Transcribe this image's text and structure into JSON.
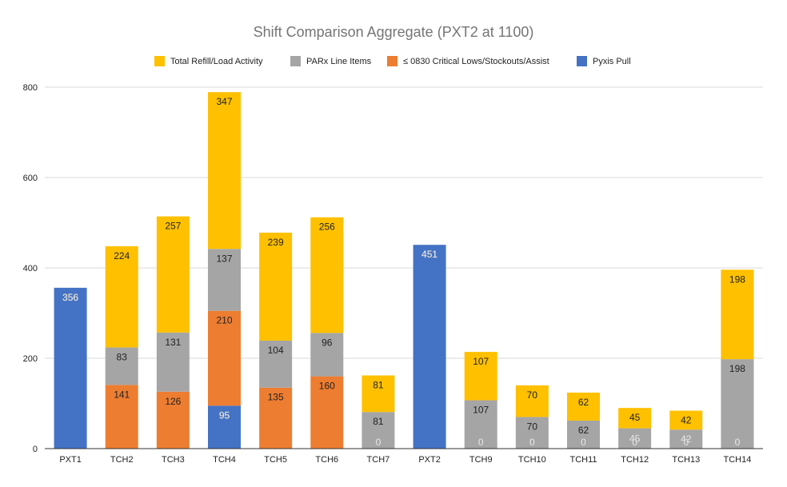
{
  "chart_data": {
    "type": "bar",
    "stacked": true,
    "title": "Shift Comparison Aggregate (PXT2 at 1100)",
    "xlabel": "",
    "ylabel": "",
    "ylim": [
      0,
      800
    ],
    "yticks": [
      0,
      200,
      400,
      600,
      800
    ],
    "grid": true,
    "legend_position": "top",
    "categories": [
      "PXT1",
      "TCH2",
      "TCH3",
      "TCH4",
      "TCH5",
      "TCH6",
      "TCH7",
      "PXT2",
      "TCH9",
      "TCH10",
      "TCH11",
      "TCH12",
      "TCH13",
      "TCH14"
    ],
    "series": [
      {
        "name": "Pyxis Pull",
        "color": "#4472c4",
        "values": [
          356,
          null,
          null,
          95,
          null,
          null,
          null,
          451,
          null,
          null,
          null,
          null,
          null,
          null
        ]
      },
      {
        "name": "≤ 0830 Critical Lows/Stockouts/Assist",
        "color": "#ed7d31",
        "values": [
          null,
          141,
          126,
          210,
          135,
          160,
          0,
          null,
          0,
          0,
          0,
          0,
          0,
          0
        ]
      },
      {
        "name": "PARx Line Items",
        "color": "#a5a5a5",
        "values": [
          null,
          83,
          131,
          137,
          104,
          96,
          81,
          null,
          107,
          70,
          62,
          45,
          42,
          198
        ]
      },
      {
        "name": "Total Refill/Load Activity",
        "color": "#ffc000",
        "values": [
          null,
          224,
          257,
          347,
          239,
          256,
          81,
          null,
          107,
          70,
          62,
          45,
          42,
          198
        ]
      }
    ],
    "legend_order": [
      3,
      2,
      1,
      0
    ],
    "data_label_colors": {
      "Pyxis Pull": "#ffffff",
      "≤ 0830 Critical Lows/Stockouts/Assist": "#222222",
      "PARx Line Items": "#222222",
      "Total Refill/Load Activity": "#222222"
    },
    "small_zero_label_color": "#ffffff"
  }
}
